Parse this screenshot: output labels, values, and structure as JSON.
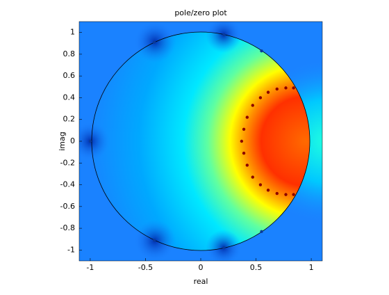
{
  "chart_data": {
    "type": "polezero",
    "title": "pole/zero plot",
    "x_label": "real",
    "y_label": "imag",
    "xlim": [
      -1.1,
      1.1
    ],
    "ylim": [
      -1.1,
      1.1
    ],
    "xticks": [
      -1,
      -0.5,
      0,
      0.5,
      1
    ],
    "yticks": [
      -1,
      -0.8,
      -0.6,
      -0.4,
      -0.2,
      0,
      0.2,
      0.4,
      0.6,
      0.8,
      1
    ],
    "zeros": {
      "color": "#0a3a9a",
      "x": [
        -1,
        -0.42,
        -0.42,
        0.21,
        0.21,
        0.55,
        0.55
      ],
      "y": [
        0,
        0.91,
        -0.91,
        0.98,
        -0.98,
        0.83,
        -0.83
      ]
    },
    "poles": {
      "color": "#8a0000",
      "x": [
        0.37,
        0.39,
        0.39,
        0.42,
        0.42,
        0.47,
        0.47,
        0.54,
        0.54,
        0.61,
        0.61,
        0.69,
        0.69,
        0.77,
        0.77,
        0.84,
        0.84
      ],
      "y": [
        0,
        0.11,
        -0.11,
        0.22,
        -0.22,
        0.33,
        -0.33,
        0.4,
        -0.4,
        0.45,
        -0.45,
        0.48,
        -0.48,
        0.49,
        -0.49,
        0.49,
        -0.49
      ]
    }
  }
}
